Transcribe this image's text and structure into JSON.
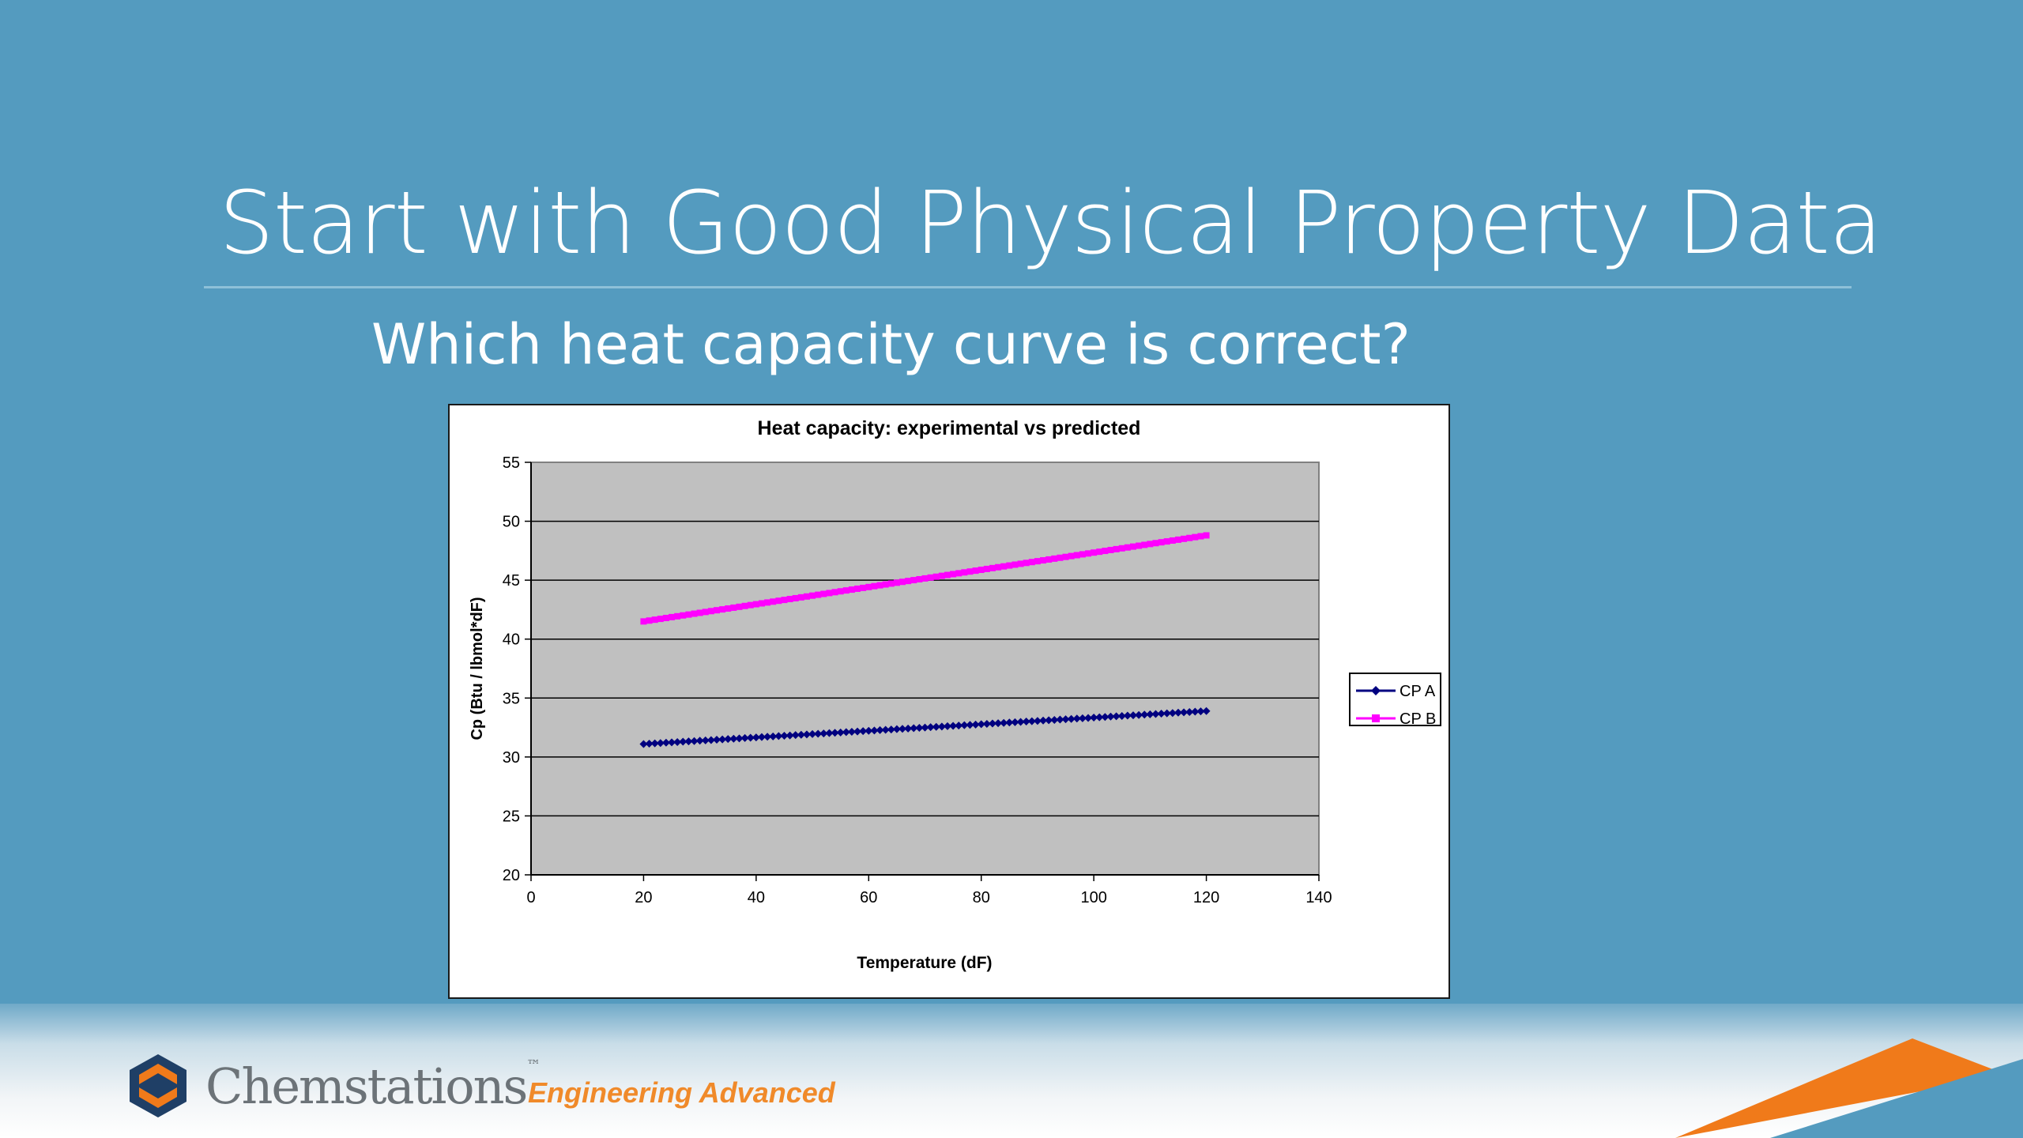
{
  "slide": {
    "title": "Start with Good Physical Property Data",
    "subtitle": "Which heat capacity curve is correct?"
  },
  "footer": {
    "brand": "Chemstations",
    "trademark": "™",
    "tagline": "Engineering Advanced",
    "brand_color": "#6c7378",
    "tagline_color": "#f08a2a"
  },
  "colors": {
    "background": "#549bbf",
    "plot_area": "#c0c0c0",
    "series_a": "#000080",
    "series_b": "#ff00ff"
  },
  "chart_data": {
    "type": "line",
    "title": "Heat capacity: experimental vs predicted",
    "xlabel": "Temperature (dF)",
    "ylabel": "Cp (Btu / lbmol*dF)",
    "xlim": [
      0,
      140
    ],
    "ylim": [
      20,
      55
    ],
    "xticks": [
      0,
      20,
      40,
      60,
      80,
      100,
      120,
      140
    ],
    "yticks": [
      20,
      25,
      30,
      35,
      40,
      45,
      50,
      55
    ],
    "grid": "horizontal",
    "legend_position": "right",
    "series": [
      {
        "name": "CP A",
        "color": "#000080",
        "marker": "diamond",
        "x_start": 20,
        "x_end": 120,
        "x_step": 1,
        "y_start": 31.1,
        "y_end": 33.9
      },
      {
        "name": "CP B",
        "color": "#ff00ff",
        "marker": "square",
        "x_start": 20,
        "x_end": 120,
        "x_step": 1,
        "y_start": 41.5,
        "y_end": 48.8
      }
    ]
  }
}
